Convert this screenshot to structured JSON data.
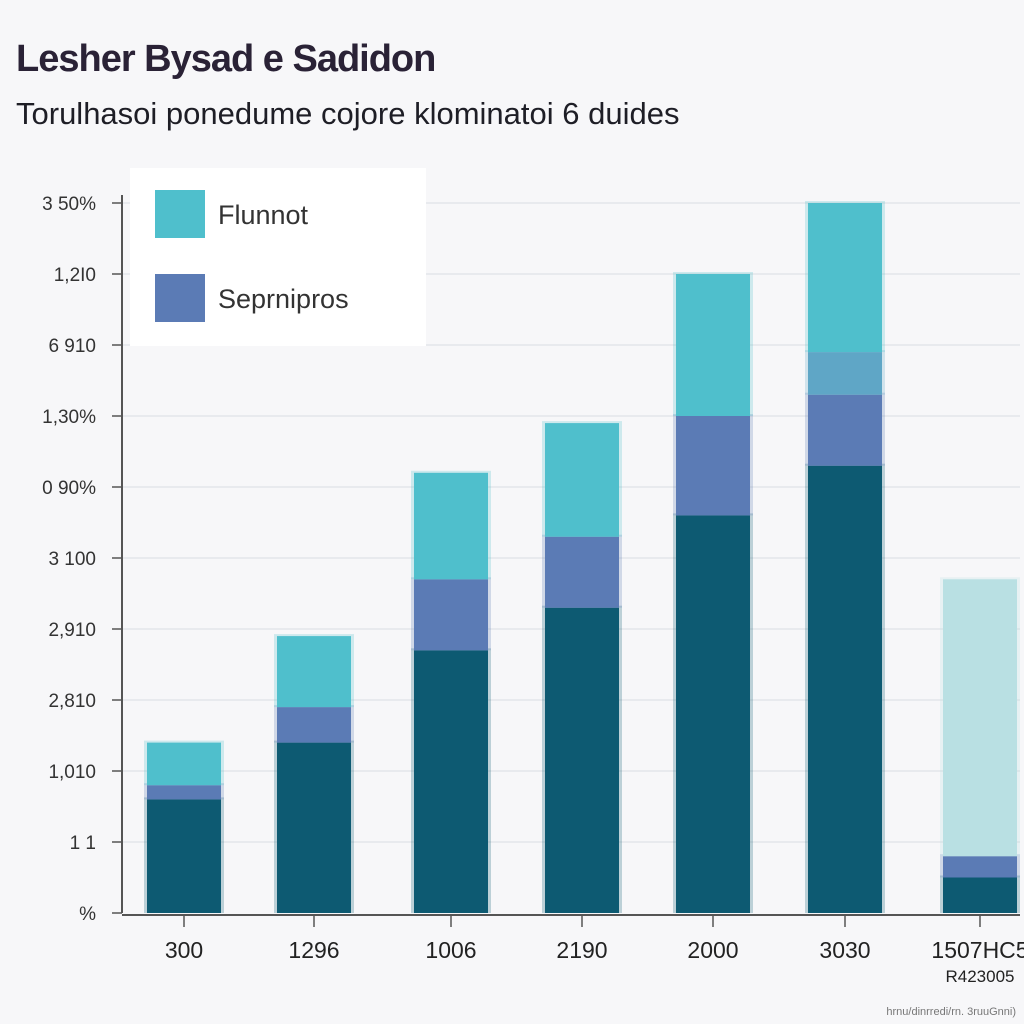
{
  "chart_data": {
    "type": "bar",
    "stacked": true,
    "title": "Lesher Bysad e Sadidon",
    "subtitle": "Torulhasoi ponedume cojore klominatoi 6 duides",
    "categories": [
      "300",
      "1296",
      "1006",
      "2190",
      "2000",
      "3030",
      "1507HC5\nR423005"
    ],
    "y_tick_labels": [
      "%",
      "1    1",
      "1,010",
      "2,810",
      "2,910",
      "3 100",
      "0 90%",
      "1,30%",
      "6 910",
      "1,2I0",
      "3 50%"
    ],
    "ylim": [
      0,
      10
    ],
    "grid": true,
    "legend_position": "top-left",
    "series": [
      {
        "color": "#0d5a72",
        "values": [
          1.6,
          2.4,
          3.7,
          4.3,
          5.6,
          6.3,
          0.5
        ]
      },
      {
        "name": "Seprnipros",
        "color": "#5b7bb5",
        "values": [
          0.2,
          0.5,
          1.0,
          1.0,
          1.4,
          1.0,
          0.3
        ]
      },
      {
        "color": "#5fa6c6",
        "values": [
          0,
          0,
          0,
          0,
          0,
          0.6,
          0
        ]
      },
      {
        "name": "Flunnot",
        "color": "#4fbfcc",
        "values": [
          0.6,
          1.0,
          1.5,
          1.6,
          2.0,
          2.1,
          3.9
        ]
      }
    ],
    "faded_category": "1507HC5\nR423005",
    "faded_color": "#b9e0e3",
    "footnote": "hrnu/dinrredi/rn. 3ruuGnni)"
  }
}
